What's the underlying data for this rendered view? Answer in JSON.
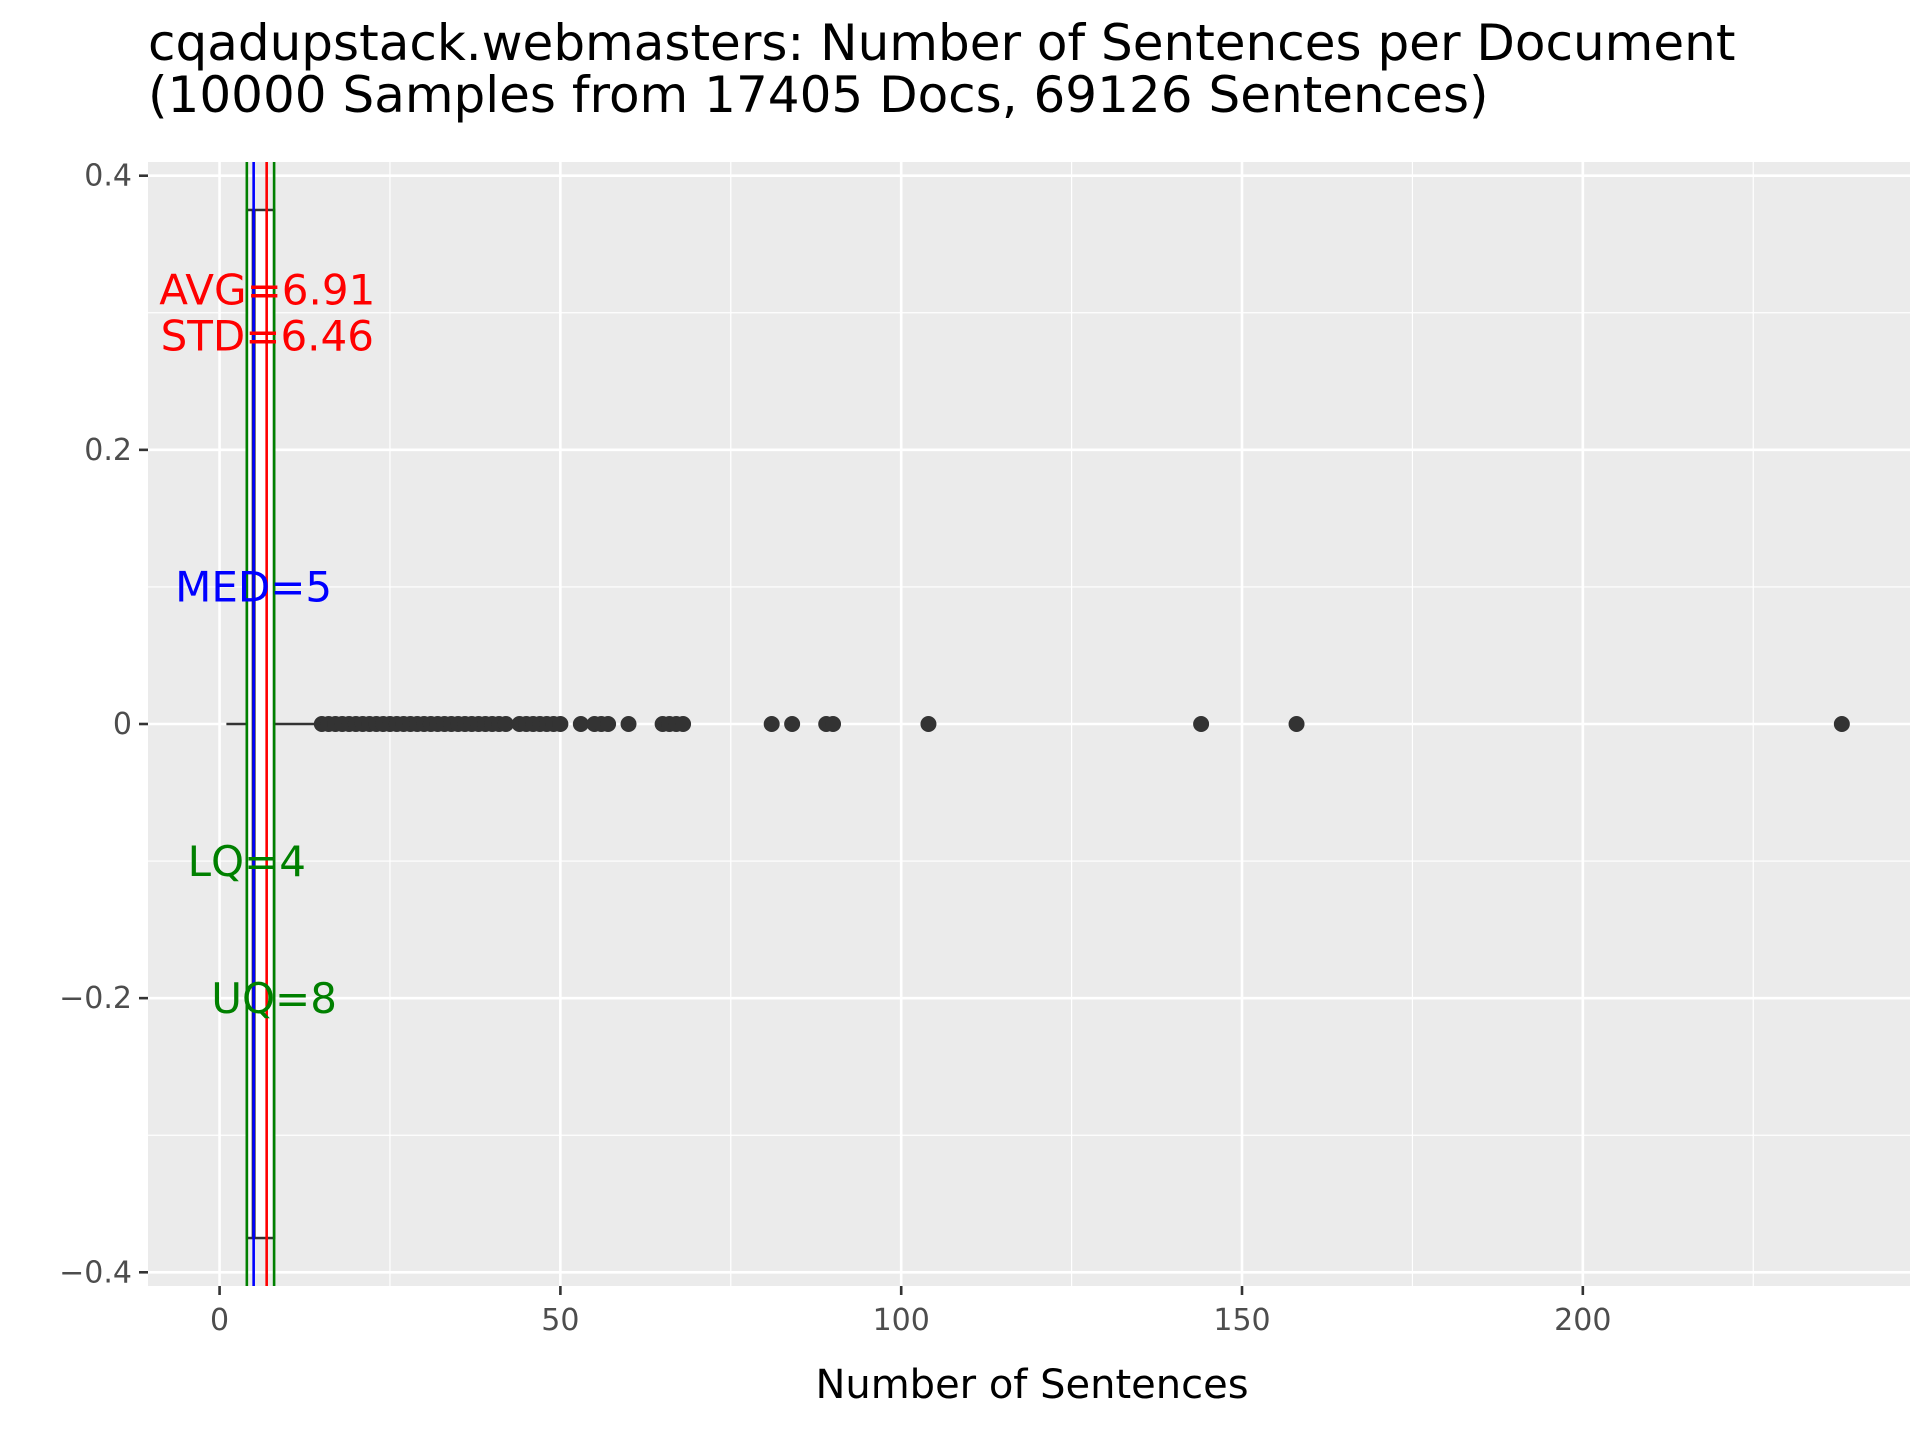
{
  "chart_data": {
    "type": "boxplot",
    "title_lines": [
      "cqadupstack.webmasters: Number of Sentences per Document",
      "(10000 Samples from 17405 Docs, 69126 Sentences)"
    ],
    "xlabel": "Number of Sentences",
    "ylabel": "",
    "xlim": [
      -10.5,
      248
    ],
    "ylim": [
      -0.41,
      0.41
    ],
    "x_ticks": [
      0,
      50,
      100,
      150,
      200
    ],
    "x_tick_labels": [
      "0",
      "50",
      "100",
      "150",
      "200"
    ],
    "y_ticks": [
      -0.4,
      -0.2,
      0,
      0.2,
      0.4
    ],
    "y_tick_labels": [
      "−0.4",
      "−0.2",
      "0",
      "0.2",
      "0.4"
    ],
    "grid": true,
    "box": {
      "y_center": 0,
      "half_height": 0.375,
      "whisker_low": 1,
      "q1": 4,
      "median": 5,
      "q3": 8,
      "whisker_high": 14
    },
    "outliers": [
      15,
      16,
      17,
      18,
      19,
      20,
      21,
      22,
      23,
      24,
      25,
      26,
      27,
      28,
      29,
      30,
      31,
      32,
      33,
      34,
      35,
      36,
      37,
      38,
      39,
      40,
      41,
      42,
      44,
      45,
      46,
      47,
      48,
      49,
      50,
      53,
      55,
      56,
      57,
      60,
      65,
      66,
      67,
      68,
      81,
      84,
      89,
      90,
      104,
      144,
      158,
      238
    ],
    "stat_lines": [
      {
        "name": "lq",
        "value": 4,
        "color": "#008000"
      },
      {
        "name": "med",
        "value": 5,
        "color": "#0000ff"
      },
      {
        "name": "avg",
        "value": 6.91,
        "color": "#ff0000"
      },
      {
        "name": "uq",
        "value": 8,
        "color": "#008000"
      }
    ],
    "annotations": [
      {
        "name": "avg",
        "lines": [
          "AVG=6.91",
          "STD=6.46"
        ],
        "x": 7,
        "y": 0.3,
        "color": "#ff0000"
      },
      {
        "name": "med",
        "lines": [
          "MED=5"
        ],
        "x": 5,
        "y": 0.1,
        "color": "#0000ff"
      },
      {
        "name": "lq",
        "lines": [
          "LQ=4"
        ],
        "x": 4,
        "y": -0.1,
        "color": "#008000"
      },
      {
        "name": "uq",
        "lines": [
          "UQ=8"
        ],
        "x": 8,
        "y": -0.2,
        "color": "#008000"
      }
    ],
    "colors": {
      "panel": "#ebebeb",
      "grid": "#ffffff",
      "points": "#333333",
      "box_stroke": "#333333"
    }
  }
}
